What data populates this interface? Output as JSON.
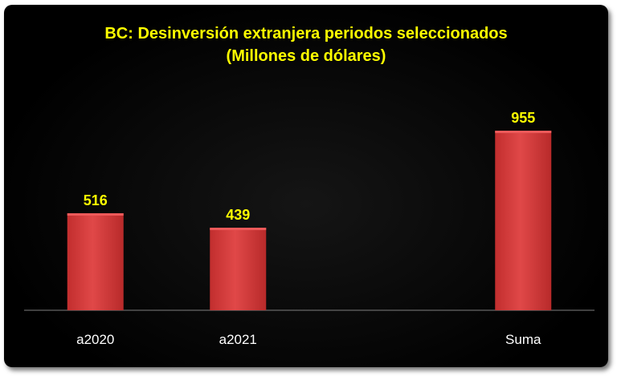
{
  "chart_data": {
    "type": "bar",
    "title": "BC: Desinversión extranjera periodos seleccionados",
    "subtitle": "(Millones de dólares)",
    "categories": [
      "a2020",
      "a2021",
      "",
      "Suma"
    ],
    "values": [
      516,
      439,
      null,
      955
    ],
    "data_labels": [
      "516",
      "439",
      "",
      "955"
    ],
    "xlabel": "",
    "ylabel": "",
    "ylim": [
      0,
      1200
    ],
    "grid": false,
    "legend": "none",
    "colors": {
      "background": "#000000",
      "bar": "#d93b3b",
      "bar_highlight": "#ee5a5a",
      "title": "#ffff00",
      "data_label": "#ffff00",
      "tick_label": "#ffffff",
      "axis": "#7f7f7f"
    }
  }
}
